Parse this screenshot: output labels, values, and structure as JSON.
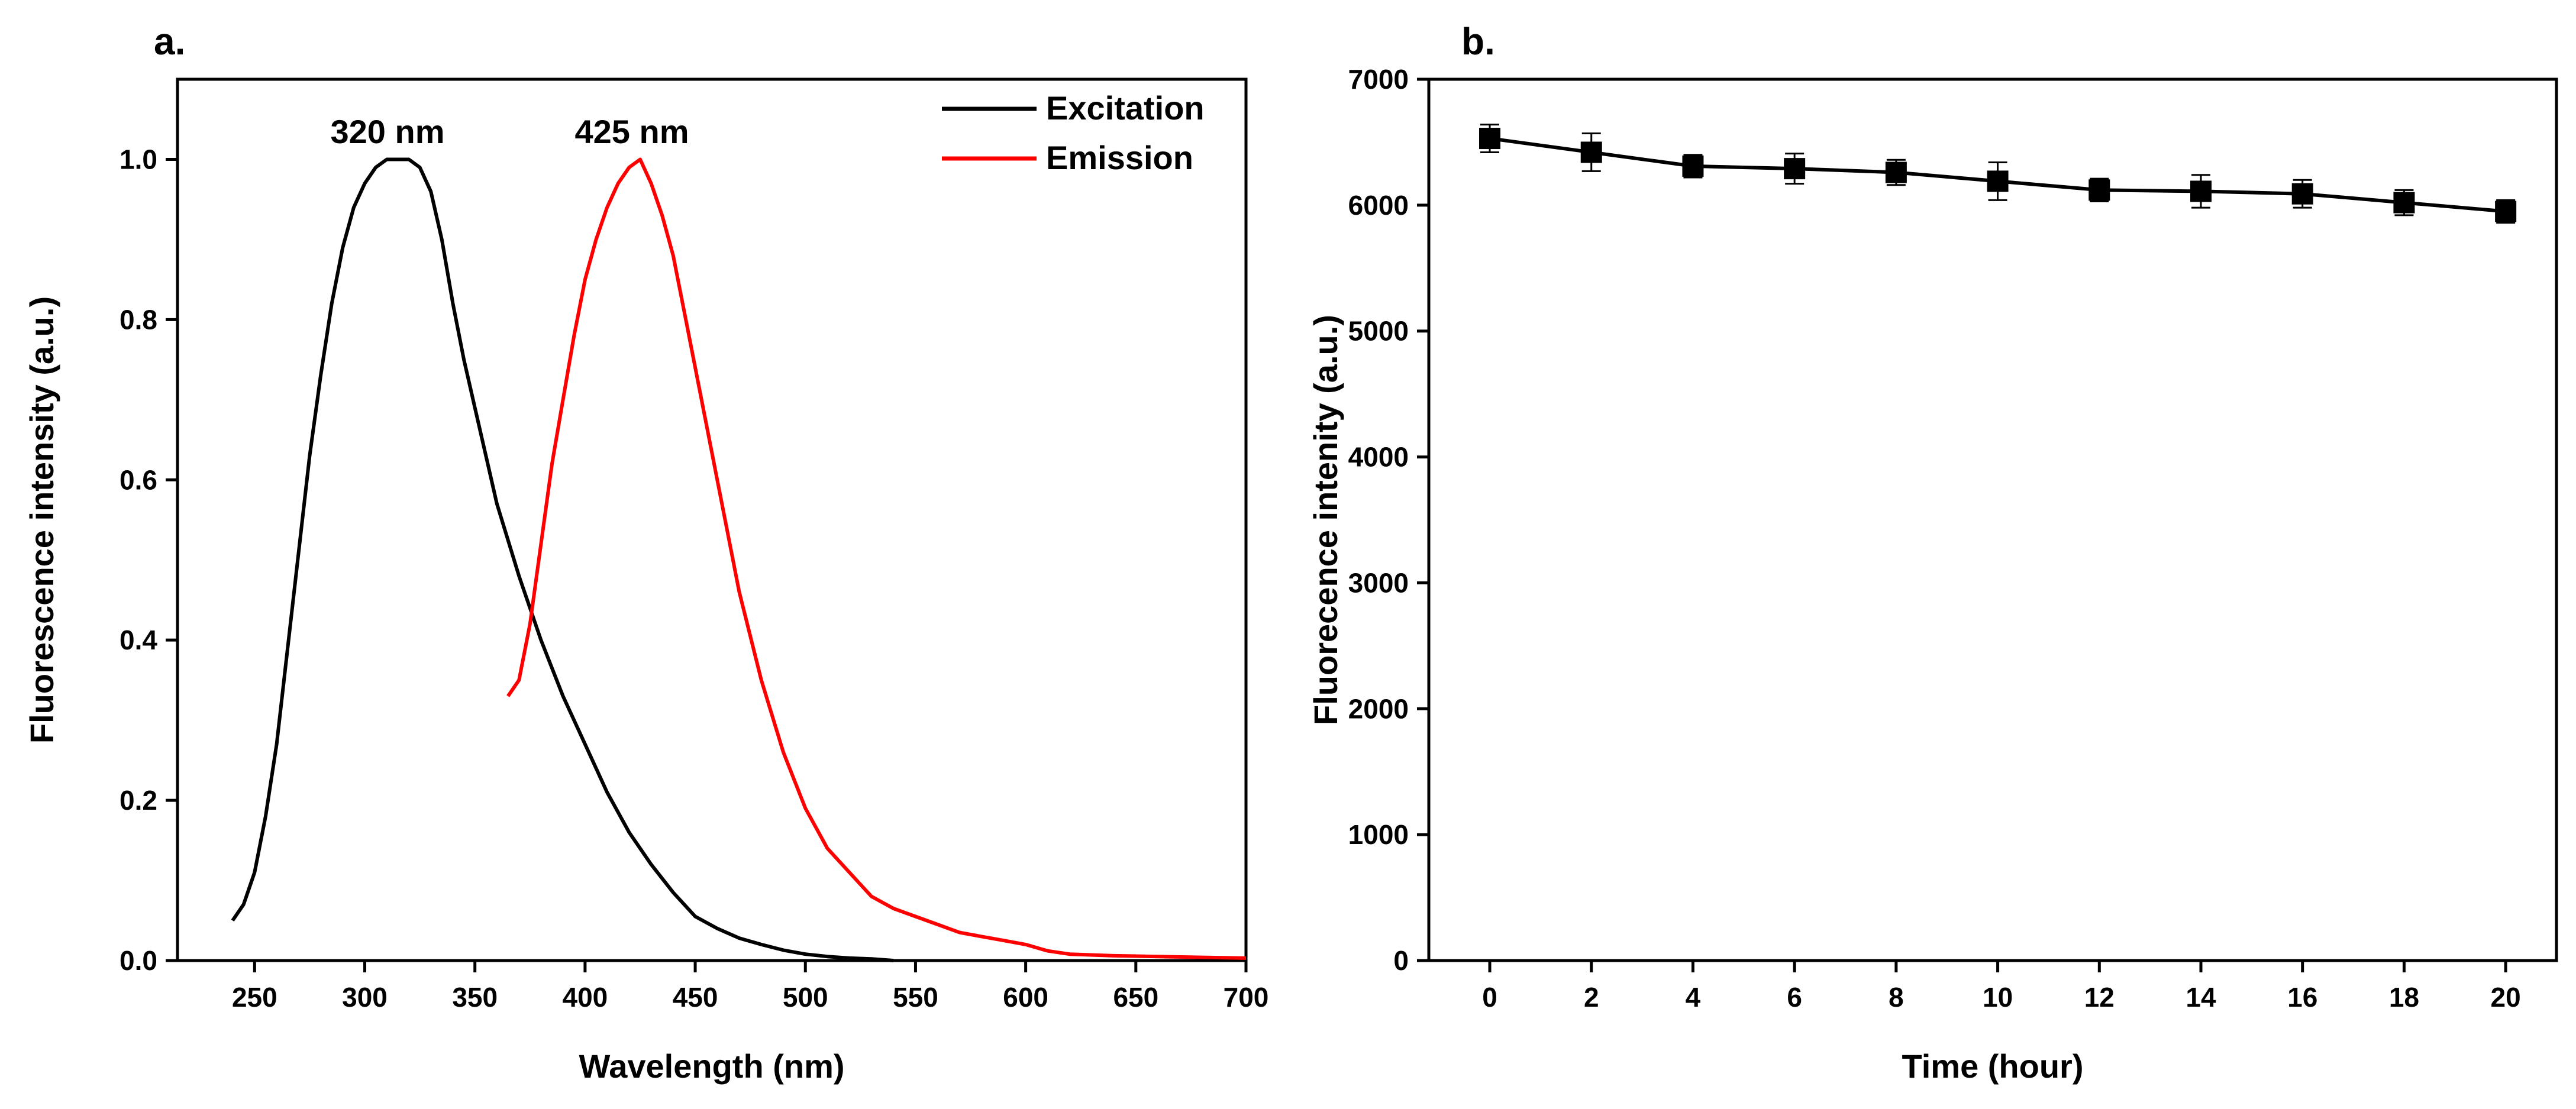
{
  "chart_data": [
    {
      "type": "line",
      "panel_label": "a.",
      "xlabel": "Wavelength (nm)",
      "ylabel": "Fluorescence intensity (a.u.)",
      "xlim": [
        215,
        700
      ],
      "ylim": [
        0,
        1.1
      ],
      "xticks": [
        "250",
        "300",
        "350",
        "400",
        "450",
        "500",
        "550",
        "600",
        "650",
        "700"
      ],
      "yticks": [
        "0.0",
        "0.2",
        "0.4",
        "0.6",
        "0.8",
        "1.0"
      ],
      "legend_position": "top-right",
      "grid": false,
      "annotations": [
        {
          "text": "320 nm",
          "x": 320,
          "y": 1.0
        },
        {
          "text": "425 nm",
          "x": 425,
          "y": 1.0
        }
      ],
      "series": [
        {
          "name": "Excitation",
          "color": "#000000",
          "x": [
            240,
            245,
            250,
            255,
            260,
            265,
            270,
            275,
            280,
            285,
            290,
            295,
            300,
            305,
            310,
            315,
            320,
            325,
            330,
            335,
            340,
            345,
            350,
            355,
            360,
            370,
            380,
            390,
            400,
            410,
            420,
            430,
            440,
            450,
            460,
            470,
            480,
            490,
            500,
            510,
            520,
            530,
            540
          ],
          "y": [
            0.05,
            0.07,
            0.11,
            0.18,
            0.27,
            0.39,
            0.51,
            0.63,
            0.73,
            0.82,
            0.89,
            0.94,
            0.97,
            0.99,
            1.0,
            1.0,
            1.0,
            0.99,
            0.96,
            0.9,
            0.82,
            0.75,
            0.69,
            0.63,
            0.57,
            0.48,
            0.4,
            0.33,
            0.27,
            0.21,
            0.16,
            0.12,
            0.085,
            0.055,
            0.04,
            0.028,
            0.02,
            0.013,
            0.008,
            0.005,
            0.003,
            0.002,
            0.0
          ]
        },
        {
          "name": "Emission",
          "color": "#ff0000",
          "x": [
            365,
            370,
            375,
            380,
            385,
            390,
            395,
            400,
            405,
            410,
            415,
            420,
            425,
            430,
            435,
            440,
            445,
            450,
            455,
            460,
            465,
            470,
            480,
            490,
            500,
            510,
            520,
            530,
            540,
            550,
            560,
            570,
            580,
            590,
            600,
            610,
            620,
            640,
            660,
            680,
            700
          ],
          "y": [
            0.33,
            0.35,
            0.42,
            0.52,
            0.62,
            0.7,
            0.78,
            0.85,
            0.9,
            0.94,
            0.97,
            0.99,
            1.0,
            0.97,
            0.93,
            0.88,
            0.81,
            0.74,
            0.67,
            0.6,
            0.53,
            0.46,
            0.35,
            0.26,
            0.19,
            0.14,
            0.11,
            0.08,
            0.065,
            0.055,
            0.045,
            0.035,
            0.03,
            0.025,
            0.02,
            0.012,
            0.008,
            0.006,
            0.005,
            0.004,
            0.003
          ]
        }
      ]
    },
    {
      "type": "line",
      "panel_label": "b.",
      "xlabel": "Time (hour)",
      "ylabel": "Fluorecence intenity (a.u.)",
      "xlim": [
        -1.2,
        21
      ],
      "ylim": [
        0,
        7000
      ],
      "xticks": [
        "0",
        "2",
        "4",
        "6",
        "8",
        "10",
        "12",
        "14",
        "16",
        "18",
        "20"
      ],
      "yticks": [
        "0",
        "1000",
        "2000",
        "3000",
        "4000",
        "5000",
        "6000",
        "7000"
      ],
      "grid": false,
      "series": [
        {
          "name": "Fluorescence intensity",
          "color": "#000000",
          "marker": "square",
          "x": [
            0,
            2,
            4,
            6,
            8,
            10,
            12,
            14,
            16,
            18,
            20
          ],
          "y": [
            6530,
            6420,
            6310,
            6290,
            6260,
            6190,
            6120,
            6110,
            6090,
            6020,
            5950
          ],
          "error": [
            110,
            150,
            90,
            120,
            100,
            150,
            90,
            130,
            110,
            100,
            90
          ]
        }
      ]
    }
  ]
}
